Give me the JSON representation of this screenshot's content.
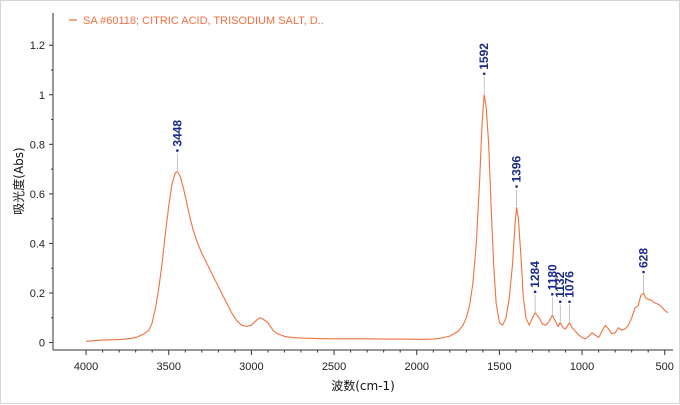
{
  "chart_data": {
    "type": "line",
    "title": "",
    "xlabel": "波数(cm-1)",
    "ylabel": "吸光度(Abs)",
    "xlim": [
      4200,
      450
    ],
    "ylim": [
      -0.03,
      1.33
    ],
    "x_direction": "reversed",
    "grid": false,
    "legend_position": "top-left",
    "x_ticks": [
      4000,
      3500,
      3000,
      2500,
      2000,
      1500,
      1000,
      500
    ],
    "y_ticks": [
      0,
      0.2,
      0.4,
      0.6,
      0.8,
      1,
      1.2
    ],
    "y_tick_labels": [
      "0",
      "0.2",
      "0.4",
      "0.6",
      "0.8",
      "1",
      "1.2"
    ],
    "series": [
      {
        "name": "SA #60118; CITRIC ACID, TRISODIUM SALT, D..",
        "color": "#f07040",
        "x": [
          4000,
          3900,
          3800,
          3750,
          3700,
          3650,
          3620,
          3600,
          3580,
          3560,
          3540,
          3520,
          3500,
          3480,
          3460,
          3448,
          3430,
          3410,
          3390,
          3370,
          3350,
          3330,
          3300,
          3270,
          3240,
          3210,
          3180,
          3150,
          3120,
          3090,
          3060,
          3030,
          3000,
          2970,
          2950,
          2930,
          2900,
          2870,
          2840,
          2800,
          2750,
          2700,
          2600,
          2500,
          2400,
          2350,
          2300,
          2200,
          2100,
          2000,
          1950,
          1900,
          1850,
          1800,
          1750,
          1720,
          1700,
          1680,
          1660,
          1640,
          1620,
          1605,
          1592,
          1580,
          1565,
          1550,
          1535,
          1520,
          1500,
          1480,
          1460,
          1440,
          1420,
          1405,
          1396,
          1385,
          1370,
          1355,
          1340,
          1320,
          1300,
          1284,
          1260,
          1240,
          1220,
          1200,
          1180,
          1160,
          1145,
          1132,
          1115,
          1100,
          1076,
          1060,
          1040,
          1020,
          1000,
          980,
          960,
          940,
          920,
          900,
          880,
          860,
          840,
          820,
          800,
          780,
          760,
          740,
          720,
          700,
          680,
          660,
          645,
          628,
          615,
          600,
          580,
          560,
          540,
          520,
          500,
          480
        ],
        "values": [
          0.005,
          0.01,
          0.012,
          0.015,
          0.02,
          0.035,
          0.05,
          0.08,
          0.14,
          0.22,
          0.32,
          0.44,
          0.55,
          0.64,
          0.685,
          0.69,
          0.67,
          0.62,
          0.56,
          0.5,
          0.45,
          0.41,
          0.36,
          0.32,
          0.28,
          0.24,
          0.2,
          0.16,
          0.12,
          0.09,
          0.07,
          0.065,
          0.07,
          0.09,
          0.1,
          0.095,
          0.08,
          0.05,
          0.035,
          0.025,
          0.02,
          0.018,
          0.016,
          0.015,
          0.015,
          0.015,
          0.015,
          0.014,
          0.014,
          0.013,
          0.013,
          0.014,
          0.018,
          0.026,
          0.045,
          0.07,
          0.1,
          0.15,
          0.24,
          0.4,
          0.65,
          0.88,
          1.0,
          0.95,
          0.8,
          0.55,
          0.32,
          0.16,
          0.08,
          0.07,
          0.1,
          0.18,
          0.32,
          0.48,
          0.545,
          0.5,
          0.35,
          0.18,
          0.1,
          0.07,
          0.1,
          0.12,
          0.1,
          0.075,
          0.07,
          0.085,
          0.11,
          0.085,
          0.065,
          0.08,
          0.06,
          0.055,
          0.08,
          0.06,
          0.045,
          0.03,
          0.02,
          0.015,
          0.025,
          0.04,
          0.03,
          0.02,
          0.045,
          0.07,
          0.055,
          0.035,
          0.04,
          0.06,
          0.05,
          0.055,
          0.07,
          0.1,
          0.14,
          0.15,
          0.19,
          0.2,
          0.18,
          0.175,
          0.17,
          0.16,
          0.155,
          0.145,
          0.13,
          0.12
        ]
      }
    ],
    "peak_labels": [
      {
        "x": 3448,
        "y": 0.69,
        "label": "3448"
      },
      {
        "x": 1592,
        "y": 1.0,
        "label": "1592"
      },
      {
        "x": 1396,
        "y": 0.545,
        "label": "1396"
      },
      {
        "x": 1284,
        "y": 0.12,
        "label": "1284"
      },
      {
        "x": 1180,
        "y": 0.11,
        "label": "1180"
      },
      {
        "x": 1132,
        "y": 0.08,
        "label": "1132"
      },
      {
        "x": 1076,
        "y": 0.08,
        "label": "1076"
      },
      {
        "x": 628,
        "y": 0.2,
        "label": "628"
      }
    ]
  }
}
